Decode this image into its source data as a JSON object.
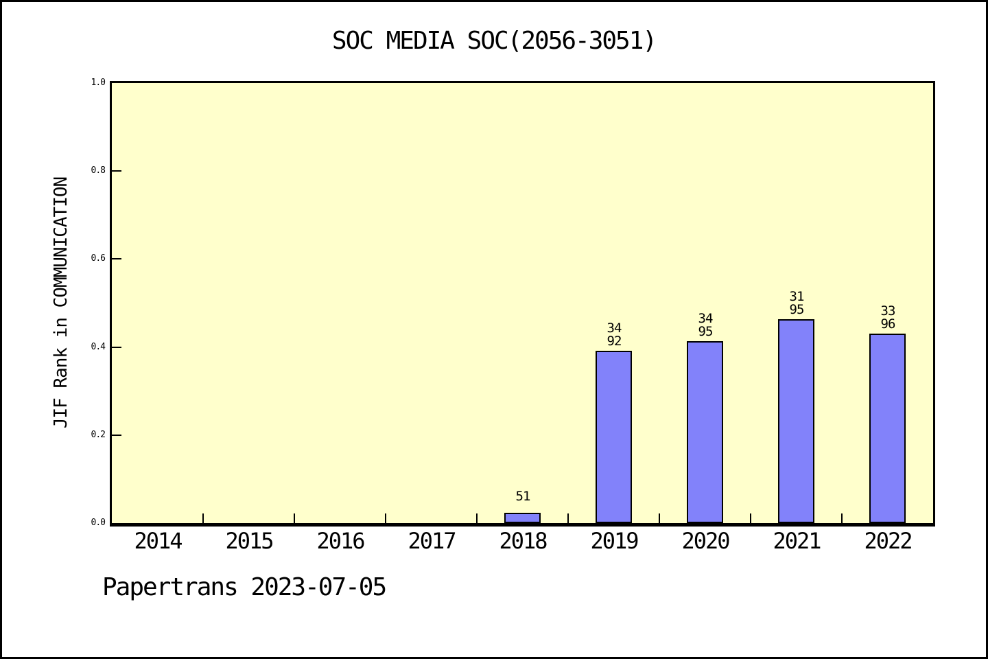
{
  "chart_data": {
    "type": "bar",
    "title": "SOC MEDIA SOC(2056-3051)",
    "xlabel": "",
    "ylabel": "JIF Rank in COMMUNICATION",
    "categories": [
      "2014",
      "2015",
      "2016",
      "2017",
      "2018",
      "2019",
      "2020",
      "2021",
      "2022"
    ],
    "values": [
      null,
      null,
      null,
      null,
      0.023,
      0.392,
      0.413,
      0.464,
      0.431
    ],
    "bar_labels": [
      [],
      [],
      [],
      [],
      [
        "51"
      ],
      [
        "34",
        "92"
      ],
      [
        "34",
        "95"
      ],
      [
        "31",
        "95"
      ],
      [
        "33",
        "96"
      ]
    ],
    "ylim": [
      0,
      1
    ],
    "yticks": [
      0.0,
      0.2,
      0.4,
      0.6,
      0.8,
      1.0
    ],
    "ytick_labels": [
      "0.0",
      "0.2",
      "0.4",
      "0.6",
      "0.8",
      "1.0"
    ],
    "grid": false,
    "legend": null,
    "bar_width_fraction": 0.4,
    "colors": {
      "plot_background": "#ffffcc",
      "bar_fill": "#8282fa",
      "bar_border": "#000000",
      "axis": "#000000",
      "text": "#000000",
      "page_background": "#ffffff"
    }
  },
  "footer": {
    "text": "Papertrans 2023-07-05"
  }
}
